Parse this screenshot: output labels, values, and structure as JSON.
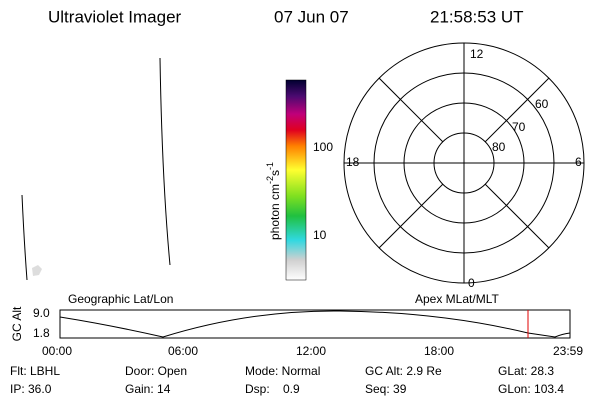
{
  "header": {
    "title": "Ultraviolet Imager",
    "date": "07 Jun 07",
    "time": "21:58:53 UT"
  },
  "colorbar": {
    "unit": "photon cm",
    "exp1": "-2",
    "s": "s",
    "exp2": "-1",
    "ticks": [
      "100",
      "10"
    ]
  },
  "polar": {
    "rings": [
      "60",
      "70",
      "80"
    ],
    "clock": {
      "top": "12",
      "left": "18",
      "right": "6",
      "bottom": "0"
    }
  },
  "strip": {
    "left_label": "Geographic Lat/Lon",
    "right_label": "Apex MLat/MLT",
    "y_label": "GC Alt",
    "y_ticks": [
      "9.0",
      "1.8"
    ],
    "x_ticks": [
      "00:00",
      "06:00",
      "12:00",
      "18:00",
      "23:59"
    ]
  },
  "info": {
    "rows": [
      [
        "Flt: LBHL",
        "Door: Open",
        "Mode: Normal",
        "GC Alt: 2.9 Re",
        "GLat: 28.3"
      ],
      [
        "IP: 36.0",
        "Gain: 14",
        "Dsp:    0.9",
        "Seq: 39",
        "GLon: 103.4"
      ]
    ]
  }
}
